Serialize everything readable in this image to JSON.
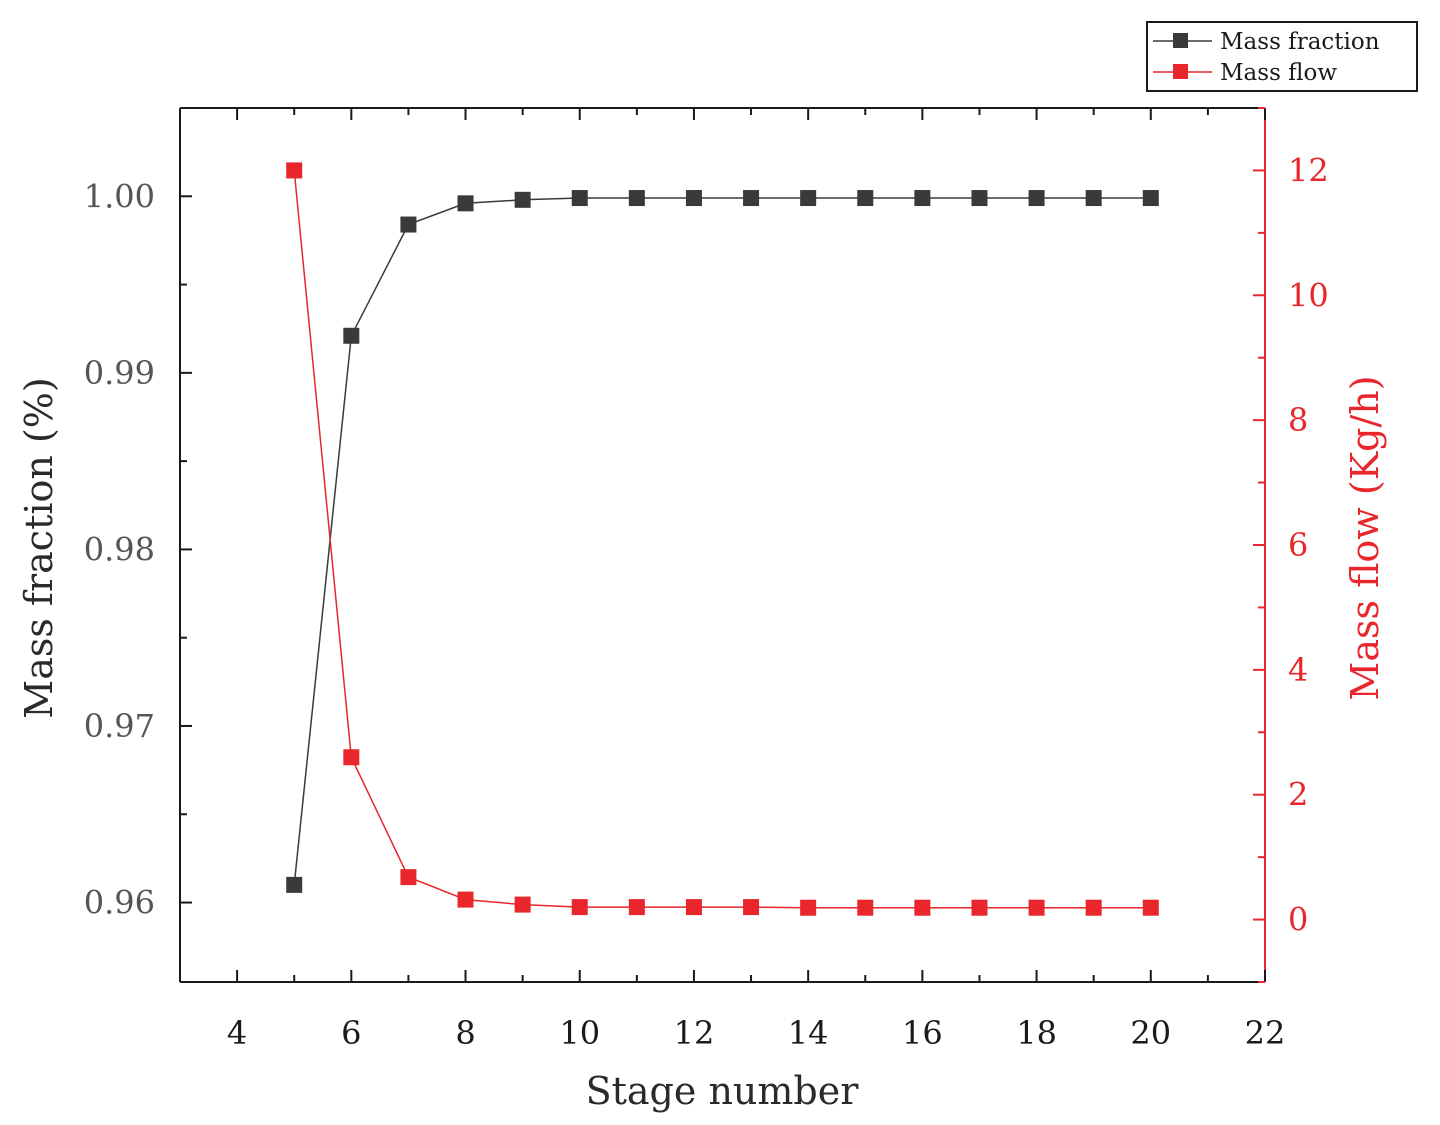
{
  "chart_data": {
    "type": "line",
    "x": [
      5,
      6,
      7,
      8,
      9,
      10,
      11,
      12,
      13,
      14,
      15,
      16,
      17,
      18,
      19,
      20
    ],
    "xlabel": "Stage number",
    "xlim": [
      3,
      22
    ],
    "xticks": [
      4,
      6,
      8,
      10,
      12,
      14,
      16,
      18,
      20,
      22
    ],
    "y_left": {
      "label": "Mass fraction (%)",
      "lim": [
        0.9555,
        1.005
      ],
      "ticks": [
        0.96,
        0.97,
        0.98,
        0.99,
        1.0
      ],
      "tick_labels": [
        "0.96",
        "0.97",
        "0.98",
        "0.99",
        "1.00"
      ],
      "color": "#3a3a3a"
    },
    "y_right": {
      "label": "Mass flow (Kg/h)",
      "lim": [
        -1,
        13
      ],
      "ticks": [
        0,
        2,
        4,
        6,
        8,
        10,
        12
      ],
      "tick_labels": [
        "0",
        "2",
        "4",
        "6",
        "8",
        "10",
        "12"
      ],
      "color": "#e8262b"
    },
    "series": [
      {
        "name": "Mass fraction",
        "axis": "left",
        "color": "#3a3a3a",
        "marker": "square",
        "values": [
          0.961,
          0.9921,
          0.9984,
          0.9996,
          0.9998,
          0.9999,
          0.9999,
          0.9999,
          0.9999,
          0.9999,
          0.9999,
          0.9999,
          0.9999,
          0.9999,
          0.9999,
          0.9999
        ]
      },
      {
        "name": "Mass flow",
        "axis": "right",
        "color": "#e8262b",
        "marker": "square",
        "values": [
          12.0,
          2.6,
          0.68,
          0.32,
          0.24,
          0.2,
          0.2,
          0.2,
          0.2,
          0.19,
          0.19,
          0.19,
          0.19,
          0.19,
          0.19,
          0.19
        ]
      }
    ],
    "legend": {
      "position": "top-right",
      "entries": [
        "Mass fraction",
        "Mass flow"
      ]
    },
    "grid": false
  }
}
